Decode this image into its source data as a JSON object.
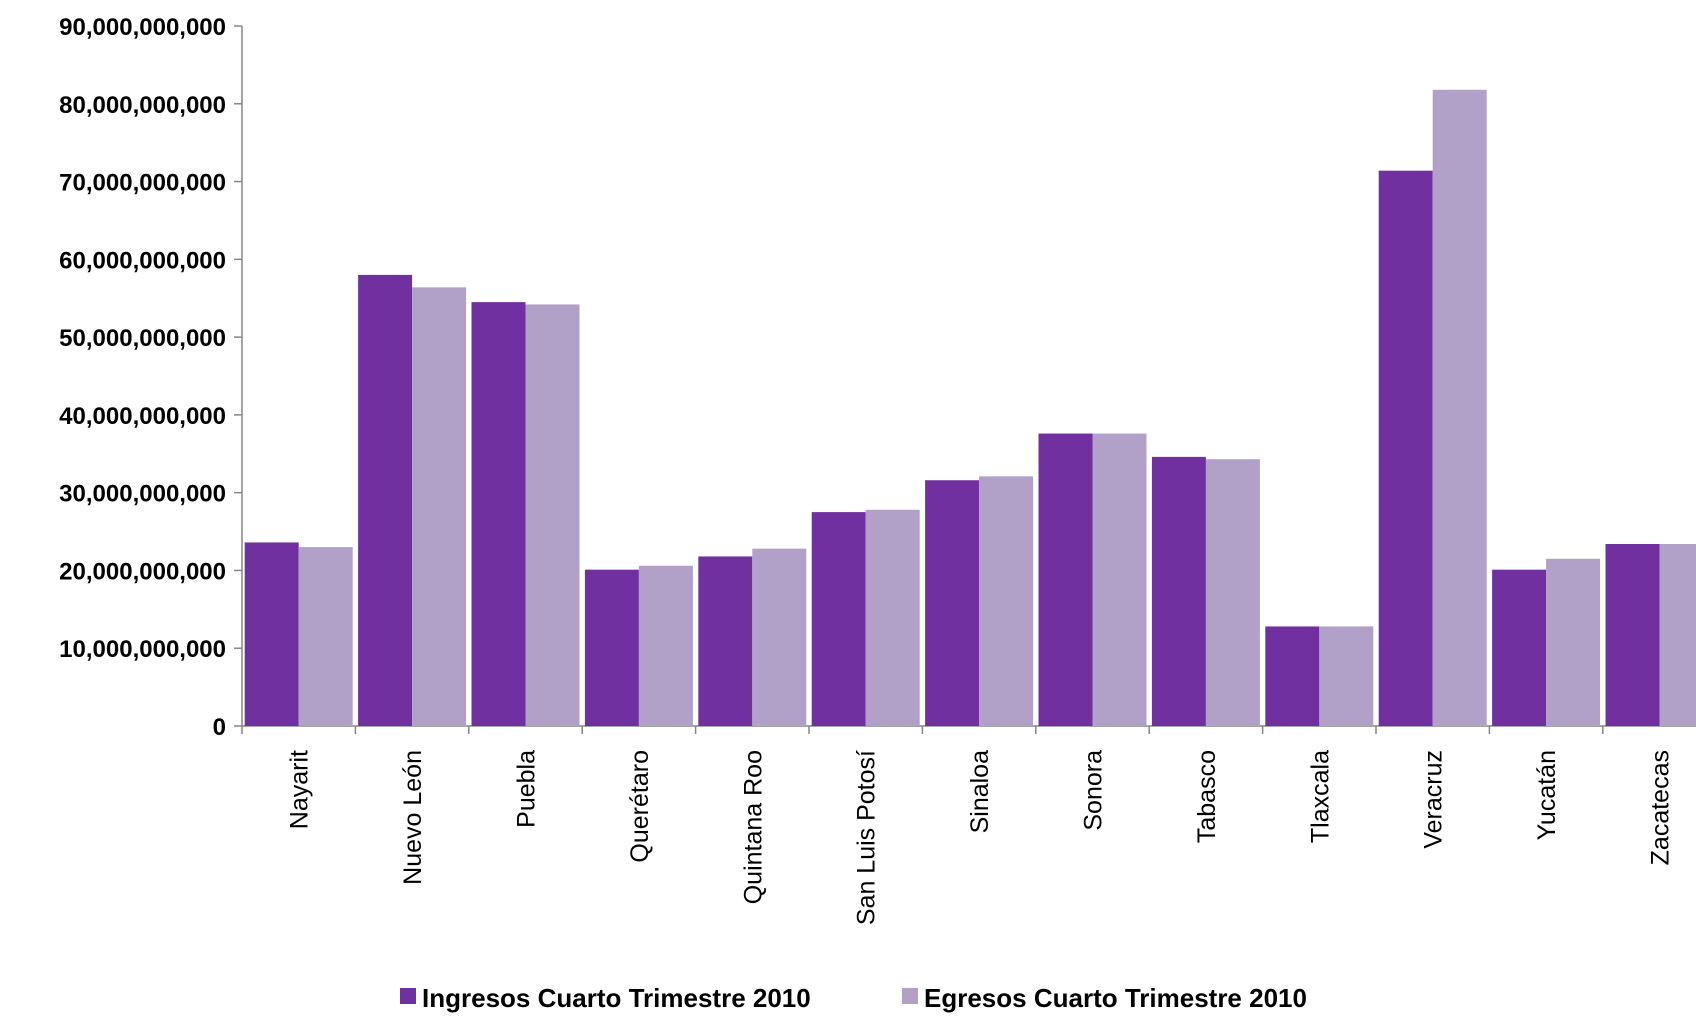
{
  "chart_data": {
    "type": "bar",
    "title": "",
    "xlabel": "",
    "ylabel": "",
    "ylim": [
      0,
      90000000000
    ],
    "yticks": [
      0,
      10000000000,
      20000000000,
      30000000000,
      40000000000,
      50000000000,
      60000000000,
      70000000000,
      80000000000,
      90000000000
    ],
    "ytick_labels": [
      "0",
      "10,000,000,000",
      "20,000,000,000",
      "30,000,000,000",
      "40,000,000,000",
      "50,000,000,000",
      "60,000,000,000",
      "70,000,000,000",
      "80,000,000,000",
      "90,000,000,000"
    ],
    "categories": [
      "Nayarit",
      "Nuevo León",
      "Puebla",
      "Querétaro",
      "Quintana Roo",
      "San Luis Potosí",
      "Sinaloa",
      "Sonora",
      "Tabasco",
      "Tlaxcala",
      "Veracruz",
      "Yucatán",
      "Zacatecas"
    ],
    "series": [
      {
        "name": "Ingresos Cuarto Trimestre 2010",
        "color": "#7030a0",
        "values": [
          23600000000,
          58000000000,
          54500000000,
          20100000000,
          21800000000,
          27500000000,
          31600000000,
          37600000000,
          34600000000,
          12800000000,
          71400000000,
          20100000000,
          23400000000
        ]
      },
      {
        "name": "Egresos Cuarto Trimestre 2010",
        "color": "#b1a0c7",
        "values": [
          23000000000,
          56400000000,
          54200000000,
          20600000000,
          22800000000,
          27800000000,
          32100000000,
          37600000000,
          34300000000,
          12800000000,
          81800000000,
          21500000000,
          23400000000
        ]
      }
    ],
    "grid": false,
    "legend": "bottom"
  }
}
